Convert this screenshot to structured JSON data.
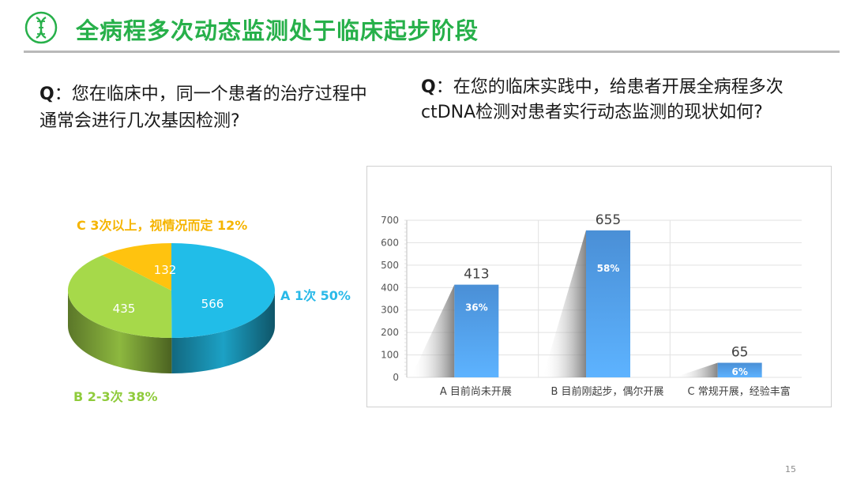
{
  "slide": {
    "title": "全病程多次动态监测处于临床起步阶段",
    "page_number": "15",
    "accent_color": "#27b04a"
  },
  "questions": {
    "left": {
      "prefix": "Q",
      "text": "：您在临床中，同一个患者的治疗过程中通常会进行几次基因检测?"
    },
    "right": {
      "prefix": "Q",
      "text": "：在您的临床实践中，给患者开展全病程多次ctDNA检测对患者实行动态监测的现状如何?"
    }
  },
  "chart_data": [
    {
      "type": "pie",
      "slices": [
        {
          "label": "A 1次 50%",
          "value": 566,
          "color": "#21bde8"
        },
        {
          "label": "B 2-3次 38%",
          "value": 435,
          "color": "#a6d94a"
        },
        {
          "label": "C 3次以上，视情况而定 12%",
          "value": 132,
          "color": "#ffc30f"
        }
      ],
      "legend_colors": {
        "A": "#29b9e8",
        "B": "#8fcb3b",
        "C": "#f5b400"
      }
    },
    {
      "type": "bar",
      "categories": [
        "A 目前尚未开展",
        "B 目前刚起步，偶尔开展",
        "C 常规开展，经验丰富"
      ],
      "values": [
        413,
        655,
        65
      ],
      "percent_labels": [
        "36%",
        "58%",
        "6%"
      ],
      "ylim": [
        0,
        700
      ],
      "yticks": [
        "0",
        "100",
        "200",
        "300",
        "400",
        "500",
        "600",
        "700"
      ],
      "grid": true,
      "bar_color": "#4a8fd6"
    }
  ]
}
